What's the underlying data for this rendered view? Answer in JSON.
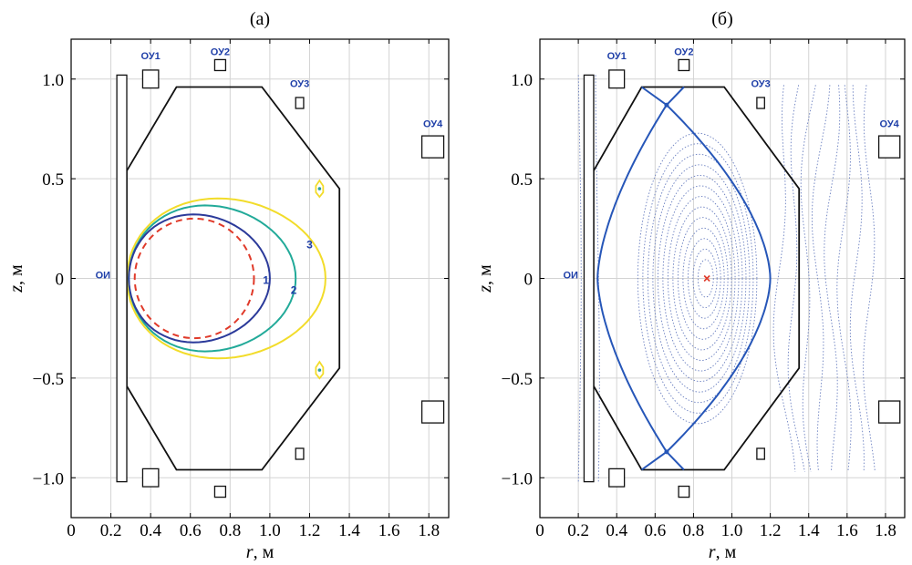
{
  "chart_data": [
    {
      "type": "line",
      "title": "(а)",
      "xlabel_var": "r",
      "xlabel_unit": ", м",
      "ylabel_var": "z",
      "ylabel_unit": ", м",
      "xlim": [
        0,
        1.9
      ],
      "ylim": [
        -1.2,
        1.2
      ],
      "xticks": [
        "0",
        "0.2",
        "0.4",
        "0.6",
        "0.8",
        "1.0",
        "1.2",
        "1.4",
        "1.6",
        "1.8"
      ],
      "yticks": [
        "−1.0",
        "−0.5",
        "0",
        "0.5",
        "1.0"
      ],
      "grid": true,
      "chamber_outline": [
        [
          0.28,
          0.54
        ],
        [
          0.53,
          0.96
        ],
        [
          0.96,
          0.96
        ],
        [
          1.35,
          0.45
        ],
        [
          1.35,
          -0.45
        ],
        [
          0.96,
          -0.96
        ],
        [
          0.53,
          -0.96
        ],
        [
          0.28,
          -0.54
        ]
      ],
      "coils": [
        {
          "label": "ОИ",
          "r": 0.255,
          "z": 0,
          "width": 0.05,
          "height": 2.04,
          "label_r": 0.16,
          "label_z": 0
        },
        {
          "label": "ОУ1",
          "r": 0.4,
          "z": 1.0,
          "width": 0.08,
          "height": 0.09,
          "label_r": 0.4,
          "label_z": 1.1
        },
        {
          "label": "",
          "r": 0.4,
          "z": -1.0,
          "width": 0.08,
          "height": 0.09
        },
        {
          "label": "ОУ2",
          "r": 0.75,
          "z": 1.07,
          "width": 0.055,
          "height": 0.055,
          "label_r": 0.75,
          "label_z": 1.12
        },
        {
          "label": "",
          "r": 0.75,
          "z": -1.07,
          "width": 0.055,
          "height": 0.055
        },
        {
          "label": "ОУ3",
          "r": 1.15,
          "z": 0.88,
          "width": 0.04,
          "height": 0.055,
          "label_r": 1.15,
          "label_z": 0.96
        },
        {
          "label": "",
          "r": 1.15,
          "z": -0.88,
          "width": 0.04,
          "height": 0.055
        },
        {
          "label": "ОУ4",
          "r": 1.82,
          "z": 0.66,
          "width": 0.11,
          "height": 0.11,
          "label_r": 1.82,
          "label_z": 0.76
        },
        {
          "label": "",
          "r": 1.82,
          "z": -0.67,
          "width": 0.11,
          "height": 0.11
        }
      ],
      "contours": [
        {
          "label": "1",
          "color": "#2b3a9a",
          "center_r": 0.645,
          "center_z": 0,
          "a": 0.355,
          "b": 0.32,
          "label_r": 0.98,
          "label_z": -0.01
        },
        {
          "label": "2",
          "color": "#22aa99",
          "center_r": 0.71,
          "center_z": 0,
          "a": 0.42,
          "b": 0.365,
          "label_r": 1.12,
          "label_z": -0.06
        },
        {
          "label": "3",
          "color": "#f2dc2a",
          "center_r": 0.78,
          "center_z": 0,
          "a": 0.5,
          "b": 0.4,
          "label_r": 1.2,
          "label_z": 0.17
        }
      ],
      "reference_circle": {
        "color": "#e03a2a",
        "center_r": 0.62,
        "center_z": 0,
        "radius": 0.3
      },
      "small_markers": [
        {
          "r": 1.25,
          "z": 0.45,
          "color": "#f2dc2a"
        },
        {
          "r": 1.25,
          "z": -0.46,
          "color": "#f2dc2a"
        }
      ]
    },
    {
      "type": "line",
      "title": "(б)",
      "xlabel_var": "r",
      "xlabel_unit": ", м",
      "ylabel_var": "z",
      "ylabel_unit": ", м",
      "xlim": [
        0,
        1.9
      ],
      "ylim": [
        -1.2,
        1.2
      ],
      "xticks": [
        "0",
        "0.2",
        "0.4",
        "0.6",
        "0.8",
        "1.0",
        "1.2",
        "1.4",
        "1.6",
        "1.8"
      ],
      "yticks": [
        "−1.0",
        "−0.5",
        "0",
        "0.5",
        "1.0"
      ],
      "grid": true,
      "chamber_outline": [
        [
          0.28,
          0.54
        ],
        [
          0.53,
          0.96
        ],
        [
          0.96,
          0.96
        ],
        [
          1.35,
          0.45
        ],
        [
          1.35,
          -0.45
        ],
        [
          0.96,
          -0.96
        ],
        [
          0.53,
          -0.96
        ],
        [
          0.28,
          -0.54
        ]
      ],
      "coils": [
        {
          "label": "ОИ",
          "r": 0.255,
          "z": 0,
          "width": 0.05,
          "height": 2.04,
          "label_r": 0.16,
          "label_z": 0
        },
        {
          "label": "ОУ1",
          "r": 0.4,
          "z": 1.0,
          "width": 0.08,
          "height": 0.09,
          "label_r": 0.4,
          "label_z": 1.1
        },
        {
          "label": "",
          "r": 0.4,
          "z": -1.0,
          "width": 0.08,
          "height": 0.09
        },
        {
          "label": "ОУ2",
          "r": 0.75,
          "z": 1.07,
          "width": 0.055,
          "height": 0.055,
          "label_r": 0.75,
          "label_z": 1.12
        },
        {
          "label": "",
          "r": 0.75,
          "z": -1.07,
          "width": 0.055,
          "height": 0.055
        },
        {
          "label": "ОУ3",
          "r": 1.15,
          "z": 0.88,
          "width": 0.04,
          "height": 0.055,
          "label_r": 1.15,
          "label_z": 0.96
        },
        {
          "label": "",
          "r": 1.15,
          "z": -0.88,
          "width": 0.04,
          "height": 0.055
        },
        {
          "label": "ОУ4",
          "r": 1.82,
          "z": 0.66,
          "width": 0.11,
          "height": 0.11,
          "label_r": 1.82,
          "label_z": 0.76
        },
        {
          "label": "",
          "r": 1.82,
          "z": -0.67,
          "width": 0.11,
          "height": 0.11
        }
      ],
      "separatrix": {
        "color": "#2656b8",
        "r_inner": 0.3,
        "r_outer": 1.2,
        "x_points": [
          {
            "r": 0.66,
            "z": 0.87
          },
          {
            "r": 0.66,
            "z": -0.87
          }
        ],
        "legs_top": [
          [
            0.53,
            0.96
          ],
          [
            0.75,
            0.96
          ]
        ],
        "legs_bottom": [
          [
            0.53,
            -0.96
          ],
          [
            0.75,
            -0.96
          ]
        ]
      },
      "magnetic_axis": {
        "r": 0.87,
        "z": 0,
        "color": "#e03a2a"
      },
      "flux_surfaces": {
        "color": "#6a7fc0",
        "count": 13,
        "center_r": 0.87,
        "min_a": 0.04,
        "max_a": 0.31
      },
      "open_field_lines_inner": [
        0.205,
        0.3
      ],
      "open_field_lines_outer": [
        1.3,
        1.36,
        1.42,
        1.48,
        1.54,
        1.6,
        1.66,
        1.72
      ]
    }
  ]
}
